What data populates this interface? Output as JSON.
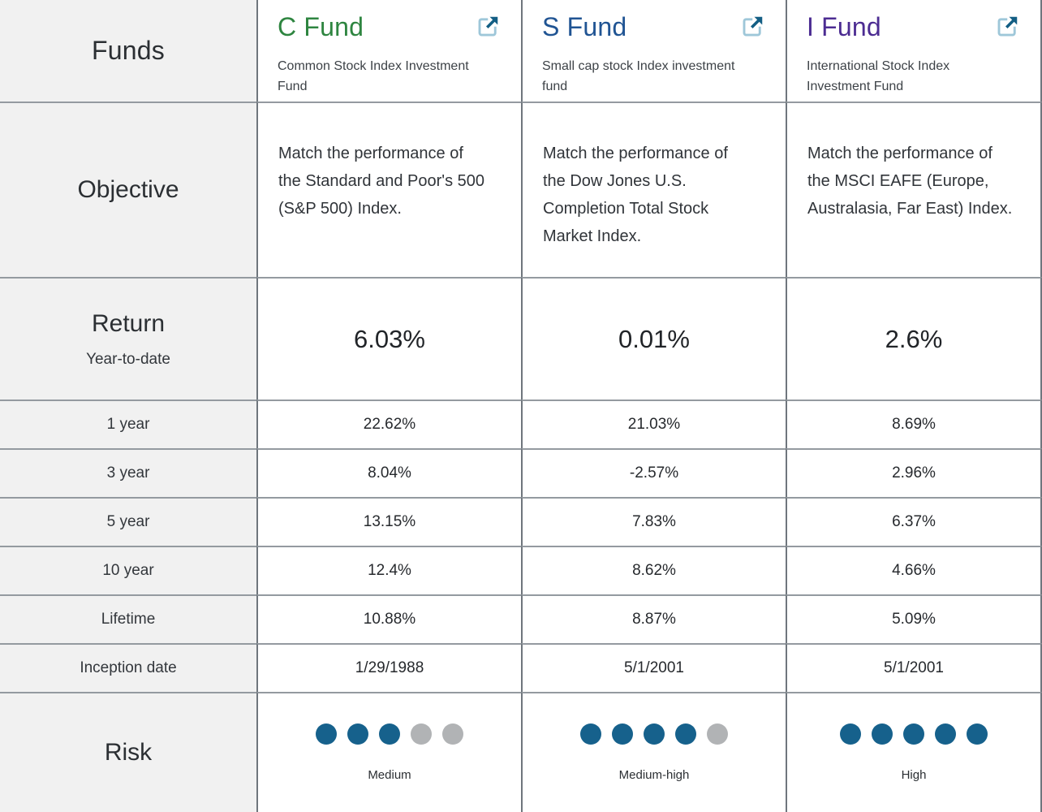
{
  "colors": {
    "label_bg": "#f1f1f1",
    "border_vertical": "#6f767d",
    "border_horizontal": "#949aa0",
    "risk_dot_filled": "#16618c",
    "risk_dot_empty": "#b1b3b5",
    "link_icon_dark": "#135e84",
    "link_icon_light": "#9ec7d9"
  },
  "table": {
    "labels": {
      "funds": "Funds",
      "objective": "Objective",
      "return": "Return",
      "return_sub": "Year-to-date",
      "one_year": "1 year",
      "three_year": "3 year",
      "five_year": "5 year",
      "ten_year": "10 year",
      "lifetime": "Lifetime",
      "inception": "Inception date",
      "risk": "Risk"
    },
    "funds": [
      {
        "name": "C Fund",
        "color": "#2e8540",
        "description": "Common Stock Index Investment\nFund",
        "objective": "Match the performance of\nthe Standard and Poor's 500\n(S&P 500) Index.",
        "returns": {
          "ytd": "6.03%",
          "one_year": "22.62%",
          "three_year": "8.04%",
          "five_year": "13.15%",
          "ten_year": "12.4%",
          "lifetime": "10.88%"
        },
        "inception": "1/29/1988",
        "risk": {
          "level": 3,
          "max": 5,
          "label": "Medium"
        }
      },
      {
        "name": "S Fund",
        "color": "#205493",
        "description": "Small cap stock Index investment\nfund",
        "objective": "Match the performance of\nthe Dow Jones U.S.\nCompletion Total Stock\nMarket Index.",
        "returns": {
          "ytd": "0.01%",
          "one_year": "21.03%",
          "three_year": "-2.57%",
          "five_year": "7.83%",
          "ten_year": "8.62%",
          "lifetime": "8.87%"
        },
        "inception": "5/1/2001",
        "risk": {
          "level": 4,
          "max": 5,
          "label": "Medium-high"
        }
      },
      {
        "name": "I Fund",
        "color": "#4c2c92",
        "description": "International Stock Index\nInvestment Fund",
        "objective": "Match the performance of\nthe MSCI EAFE (Europe,\nAustralasia, Far East) Index.",
        "returns": {
          "ytd": "2.6%",
          "one_year": "8.69%",
          "three_year": "2.96%",
          "five_year": "6.37%",
          "ten_year": "4.66%",
          "lifetime": "5.09%"
        },
        "inception": "5/1/2001",
        "risk": {
          "level": 5,
          "max": 5,
          "label": "High"
        }
      }
    ]
  }
}
